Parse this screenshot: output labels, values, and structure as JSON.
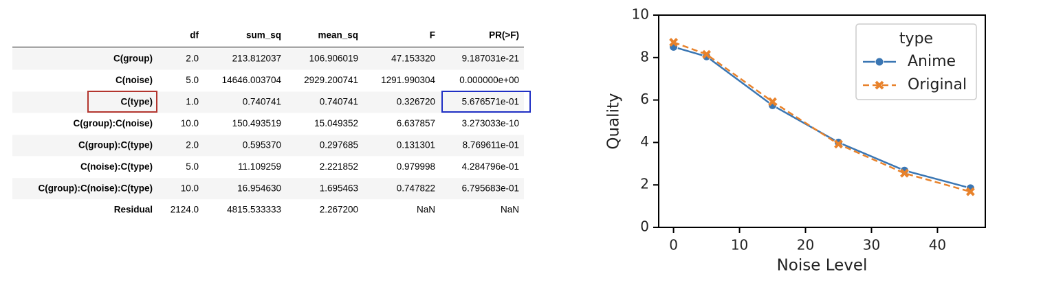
{
  "table": {
    "columns": [
      "df",
      "sum_sq",
      "mean_sq",
      "F",
      "PR(>F)"
    ],
    "rows": [
      [
        "C(group)",
        "2.0",
        "213.812037",
        "106.906019",
        "47.153320",
        "9.187031e-21"
      ],
      [
        "C(noise)",
        "5.0",
        "14646.003704",
        "2929.200741",
        "1291.990304",
        "0.000000e+00"
      ],
      [
        "C(type)",
        "1.0",
        "0.740741",
        "0.740741",
        "0.326720",
        "5.676571e-01"
      ],
      [
        "C(group):C(noise)",
        "10.0",
        "150.493519",
        "15.049352",
        "6.637857",
        "3.273033e-10"
      ],
      [
        "C(group):C(type)",
        "2.0",
        "0.595370",
        "0.297685",
        "0.131301",
        "8.769611e-01"
      ],
      [
        "C(noise):C(type)",
        "5.0",
        "11.109259",
        "2.221852",
        "0.979998",
        "4.284796e-01"
      ],
      [
        "C(group):C(noise):C(type)",
        "10.0",
        "16.954630",
        "1.695463",
        "0.747822",
        "6.795683e-01"
      ],
      [
        "Residual",
        "2124.0",
        "4815.533333",
        "2.267200",
        "NaN",
        "NaN"
      ]
    ]
  },
  "chart_data": {
    "type": "line",
    "x_label": "Noise Level",
    "y_label": "Quality",
    "x": [
      0,
      5,
      15,
      25,
      35,
      45
    ],
    "series": [
      {
        "name": "Anime",
        "color": "#3a76b3",
        "dashed": false,
        "marker": "circle",
        "values": [
          8.5,
          8.05,
          5.75,
          4.0,
          2.68,
          1.85
        ]
      },
      {
        "name": "Original",
        "color": "#e8822b",
        "dashed": true,
        "marker": "x",
        "values": [
          8.72,
          8.15,
          5.92,
          3.92,
          2.55,
          1.68
        ]
      }
    ],
    "xlim": [
      -2.25,
      47.25
    ],
    "xticks": [
      0,
      10,
      20,
      30,
      40
    ],
    "ylim": [
      0,
      10
    ],
    "yticks": [
      0,
      2,
      4,
      6,
      8,
      10
    ],
    "legend_title": "type",
    "legend": "upper right"
  }
}
